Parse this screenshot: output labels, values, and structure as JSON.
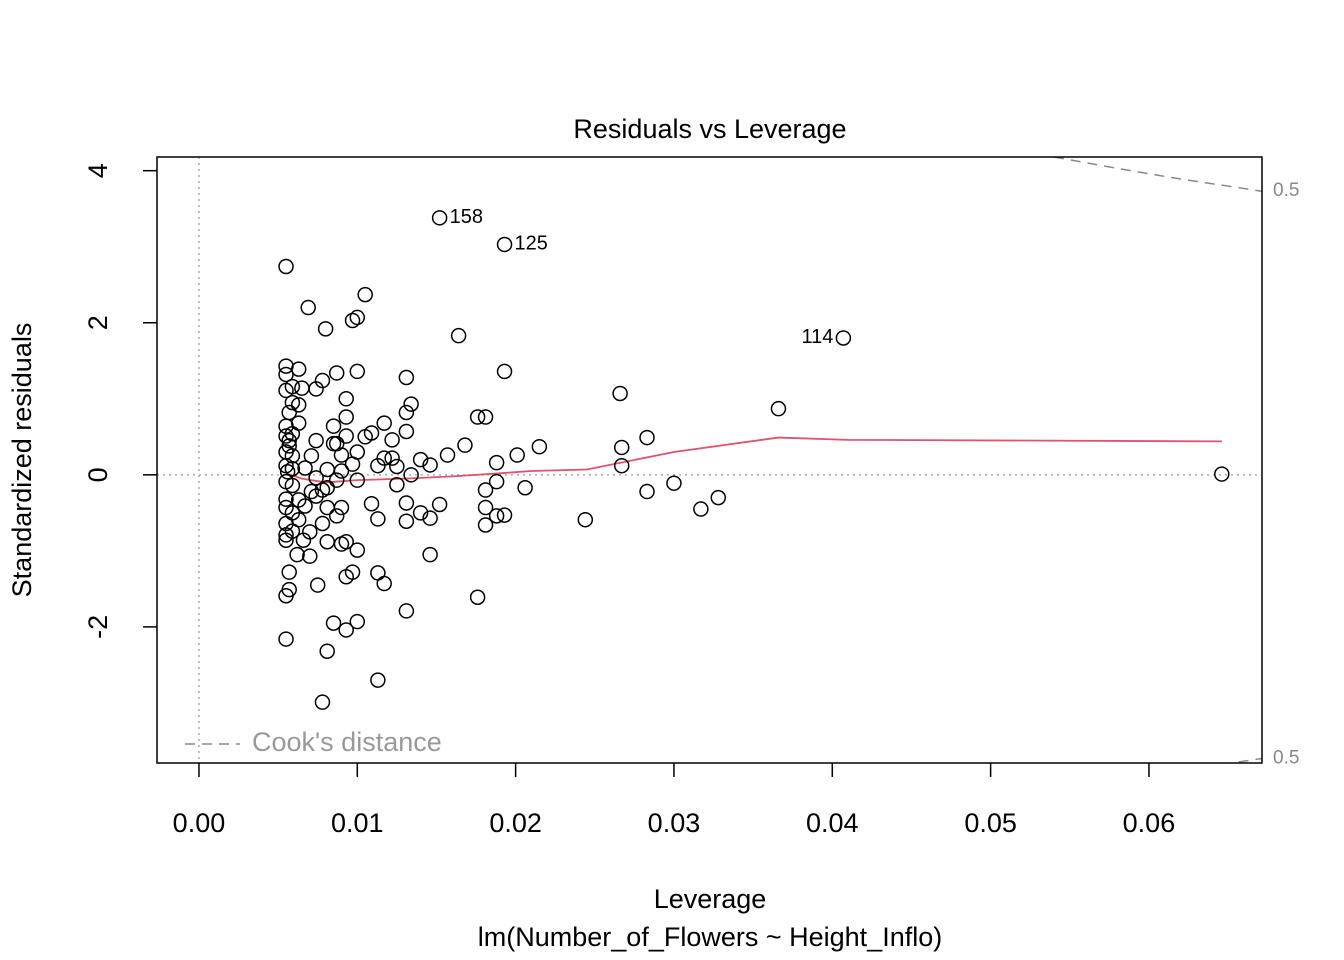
{
  "chart_data": {
    "type": "scatter",
    "title": "Residuals vs Leverage",
    "xlabel": "Leverage",
    "subtitle": "lm(Number_of_Flowers ~ Height_Inflo)",
    "ylabel": "Standardized residuals",
    "xlim": [
      -0.00265,
      0.06714
    ],
    "ylim": [
      -3.79,
      4.18
    ],
    "xticks": [
      {
        "value": 0,
        "label": "0.00"
      },
      0.01,
      0.02,
      0.03,
      0.04,
      0.05,
      0.06
    ],
    "yticks": [
      -2,
      0,
      2,
      4
    ],
    "x": [
      0.0055,
      0.0646,
      0.0366,
      0.0266,
      0.0267,
      0.0267,
      0.0283,
      0.0283,
      0.03,
      0.0317,
      0.0328,
      0.0244,
      0.0215,
      0.0206,
      0.0201,
      0.0193,
      0.0193,
      0.0188,
      0.0188,
      0.0188,
      0.0181,
      0.0176,
      0.0181,
      0.0181,
      0.0181,
      0.0176,
      0.0164,
      0.0168,
      0.0157,
      0.0152,
      0.0146,
      0.0146,
      0.0146,
      0.014,
      0.014,
      0.0134,
      0.0131,
      0.0131,
      0.0131,
      0.0131,
      0.0131,
      0.0131,
      0.0134,
      0.0125,
      0.0125,
      0.0122,
      0.0122,
      0.0117,
      0.0117,
      0.0113,
      0.0113,
      0.0113,
      0.0117,
      0.0113,
      0.0109,
      0.0109,
      0.0105,
      0.0105,
      0.01,
      0.0097,
      0.01,
      0.01,
      0.01,
      0.01,
      0.01,
      0.0097,
      0.0097,
      0.0093,
      0.0093,
      0.0093,
      0.0093,
      0.0093,
      0.0093,
      0.009,
      0.009,
      0.009,
      0.009,
      0.0087,
      0.0087,
      0.0087,
      0.0087,
      0.0085,
      0.0085,
      0.0085,
      0.008,
      0.0081,
      0.0081,
      0.0081,
      0.0081,
      0.0081,
      0.0078,
      0.0078,
      0.0078,
      0.0078,
      0.0075,
      0.0074,
      0.0074,
      0.0074,
      0.0074,
      0.0069,
      0.0071,
      0.0071,
      0.007,
      0.007,
      0.0067,
      0.0067,
      0.0066,
      0.0065,
      0.0063,
      0.0063,
      0.0063,
      0.0063,
      0.0063,
      0.0062,
      0.0059,
      0.0059,
      0.0059,
      0.0059,
      0.0059,
      0.0059,
      0.0059,
      0.0059,
      0.0057,
      0.0057,
      0.0057,
      0.0057,
      0.0055,
      0.0055,
      0.0055,
      0.0055,
      0.0055,
      0.0055,
      0.0055,
      0.0055,
      0.0055,
      0.0055,
      0.0055,
      0.0055,
      0.0055,
      0.0055,
      0.0055,
      0.0056,
      0.0057
    ],
    "y": [
      2.74,
      0.01,
      0.87,
      1.07,
      0.36,
      0.12,
      0.49,
      -0.22,
      -0.11,
      -0.45,
      -0.3,
      -0.59,
      0.37,
      -0.17,
      0.26,
      1.36,
      -0.53,
      0.16,
      -0.09,
      -0.54,
      0.76,
      0.76,
      -0.2,
      -0.43,
      -0.66,
      -1.61,
      1.83,
      0.39,
      0.26,
      -0.39,
      0.13,
      -0.57,
      -1.05,
      0.2,
      -0.5,
      0.93,
      1.28,
      0.82,
      0.57,
      -0.37,
      -0.61,
      -1.79,
      0.0,
      0.11,
      -0.13,
      0.46,
      0.22,
      0.68,
      0.22,
      0.12,
      -0.58,
      -1.29,
      -1.43,
      -2.7,
      0.55,
      -0.38,
      0.5,
      2.37,
      2.07,
      2.03,
      1.36,
      0.3,
      -0.07,
      -0.99,
      -1.93,
      0.14,
      -1.28,
      1.0,
      0.76,
      0.51,
      -1.34,
      -0.88,
      -2.04,
      0.26,
      0.05,
      -0.43,
      -0.91,
      1.34,
      0.41,
      -0.07,
      -0.54,
      0.64,
      0.41,
      -1.95,
      1.92,
      0.07,
      -0.17,
      -0.43,
      -0.88,
      -2.32,
      -2.99,
      1.24,
      -0.2,
      -0.64,
      -1.45,
      1.13,
      0.45,
      -0.04,
      -0.28,
      2.2,
      0.25,
      -0.22,
      -0.75,
      -1.07,
      0.09,
      -0.41,
      -0.86,
      1.14,
      1.39,
      0.92,
      0.68,
      -0.33,
      -0.59,
      -1.05,
      1.16,
      0.95,
      0.54,
      0.25,
      0.08,
      -0.14,
      -0.5,
      -0.74,
      -1.28,
      -1.51,
      0.82,
      0.45,
      1.43,
      1.32,
      1.11,
      0.64,
      0.51,
      0.3,
      0.12,
      -0.09,
      -0.32,
      -0.43,
      -0.64,
      -0.79,
      -0.86,
      -1.59,
      -2.16,
      0.04,
      0.38
    ],
    "labeled_points": [
      {
        "label": "158",
        "x": 0.0152,
        "y": 3.38
      },
      {
        "label": "125",
        "x": 0.0193,
        "y": 3.03
      },
      {
        "label": "114",
        "x": 0.0407,
        "y": 1.8
      }
    ],
    "smooth": {
      "color": "#df536b",
      "x": [
        0.0055,
        0.0065,
        0.008,
        0.01,
        0.013,
        0.016,
        0.019,
        0.021,
        0.0245,
        0.03,
        0.0366,
        0.041,
        0.0646
      ],
      "y": [
        0.02,
        -0.05,
        -0.1,
        -0.07,
        -0.05,
        -0.02,
        0.02,
        0.05,
        0.07,
        0.3,
        0.49,
        0.46,
        0.44
      ]
    },
    "cooks_lines": [
      {
        "label": 0.5,
        "x": [
          0.054,
          0.058,
          0.062,
          0.06714
        ],
        "y": [
          4.18,
          4.03,
          3.89,
          3.73
        ]
      },
      {
        "label": 0.5,
        "x": [
          0.0646,
          0.06714
        ],
        "y": [
          -3.81,
          -3.73
        ]
      }
    ],
    "legend": {
      "label": "Cook's distance",
      "position": "bottom-left"
    }
  }
}
